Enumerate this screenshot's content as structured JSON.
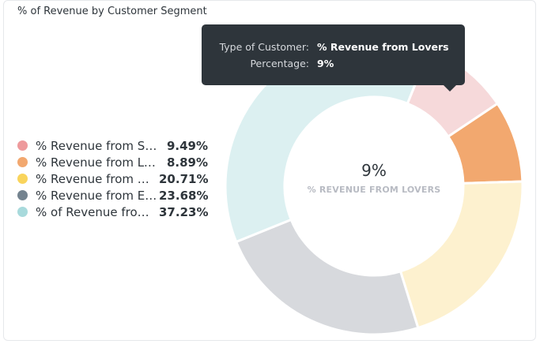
{
  "card": {
    "title": "% of Revenue by Customer Segment"
  },
  "legend": [
    {
      "label": "% Revenue from So…",
      "value": "9.49%",
      "color": "#ee9a9c"
    },
    {
      "label": "% Revenue from Lo…",
      "value": "8.89%",
      "color": "#f2a86f"
    },
    {
      "label": "% Revenue from …",
      "value": "20.71%",
      "color": "#f9d45c"
    },
    {
      "label": "% Revenue from E…",
      "value": "23.68%",
      "color": "#74838f"
    },
    {
      "label": "% of Revenue fro…",
      "value": "37.23%",
      "color": "#a8dadc"
    }
  ],
  "center": {
    "value": "9%",
    "label": "% REVENUE FROM LOVERS"
  },
  "tooltip": {
    "rows": [
      {
        "key": "Type of Customer:",
        "value": "% Revenue from Lovers"
      },
      {
        "key": "Percentage:",
        "value": "9%"
      }
    ]
  },
  "chart_data": {
    "type": "pie",
    "title": "% of Revenue by Customer Segment",
    "categories": [
      "% Revenue from So…",
      "% Revenue from Lo…",
      "% Revenue from …",
      "% Revenue from E…",
      "% of Revenue fro…"
    ],
    "values": [
      9.49,
      8.89,
      20.71,
      23.68,
      37.23
    ],
    "slice_colors": [
      "#f6d9da",
      "#f2a86f",
      "#fdf1cf",
      "#d7d9dd",
      "#dcf0f1"
    ],
    "highlighted": "% Revenue from Lo…",
    "legend_position": "left"
  }
}
